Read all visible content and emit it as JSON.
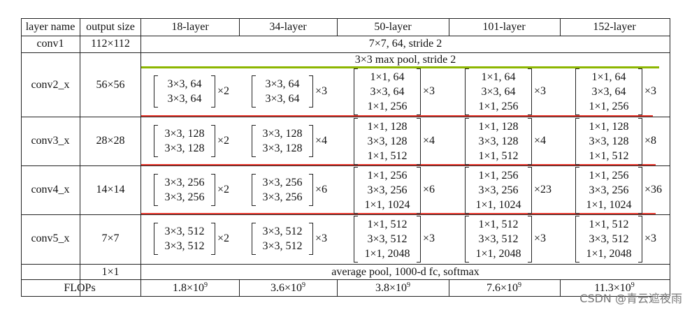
{
  "header": [
    "layer name",
    "output size",
    "18-layer",
    "34-layer",
    "50-layer",
    "101-layer",
    "152-layer"
  ],
  "rows": [
    {
      "name": "conv1",
      "size": "112×112",
      "span": "7×7, 64, stride 2"
    },
    {
      "name": "conv2_x",
      "size": "56×56",
      "span_top": "3×3 max pool, stride 2",
      "blocks": [
        {
          "lines": [
            "3×3, 64",
            "3×3, 64"
          ],
          "mult": "×2"
        },
        {
          "lines": [
            "3×3, 64",
            "3×3, 64"
          ],
          "mult": "×3"
        },
        {
          "lines": [
            "1×1, 64",
            "3×3, 64",
            "1×1, 256"
          ],
          "mult": "×3"
        },
        {
          "lines": [
            "1×1, 64",
            "3×3, 64",
            "1×1, 256"
          ],
          "mult": "×3"
        },
        {
          "lines": [
            "1×1, 64",
            "3×3, 64",
            "1×1, 256"
          ],
          "mult": "×3"
        }
      ]
    },
    {
      "name": "conv3_x",
      "size": "28×28",
      "blocks": [
        {
          "lines": [
            "3×3, 128",
            "3×3, 128"
          ],
          "mult": "×2"
        },
        {
          "lines": [
            "3×3, 128",
            "3×3, 128"
          ],
          "mult": "×4"
        },
        {
          "lines": [
            "1×1, 128",
            "3×3, 128",
            "1×1, 512"
          ],
          "mult": "×4"
        },
        {
          "lines": [
            "1×1, 128",
            "3×3, 128",
            "1×1, 512"
          ],
          "mult": "×4"
        },
        {
          "lines": [
            "1×1, 128",
            "3×3, 128",
            "1×1, 512"
          ],
          "mult": "×8"
        }
      ]
    },
    {
      "name": "conv4_x",
      "size": "14×14",
      "blocks": [
        {
          "lines": [
            "3×3, 256",
            "3×3, 256"
          ],
          "mult": "×2"
        },
        {
          "lines": [
            "3×3, 256",
            "3×3, 256"
          ],
          "mult": "×6"
        },
        {
          "lines": [
            "1×1, 256",
            "3×3, 256",
            "1×1, 1024"
          ],
          "mult": "×6"
        },
        {
          "lines": [
            "1×1, 256",
            "3×3, 256",
            "1×1, 1024"
          ],
          "mult": "×23"
        },
        {
          "lines": [
            "1×1, 256",
            "3×3, 256",
            "1×1, 1024"
          ],
          "mult": "×36"
        }
      ]
    },
    {
      "name": "conv5_x",
      "size": "7×7",
      "blocks": [
        {
          "lines": [
            "3×3, 512",
            "3×3, 512"
          ],
          "mult": "×2"
        },
        {
          "lines": [
            "3×3, 512",
            "3×3, 512"
          ],
          "mult": "×3"
        },
        {
          "lines": [
            "1×1, 512",
            "3×3, 512",
            "1×1, 2048"
          ],
          "mult": "×3"
        },
        {
          "lines": [
            "1×1, 512",
            "3×3, 512",
            "1×1, 2048"
          ],
          "mult": "×3"
        },
        {
          "lines": [
            "1×1, 512",
            "3×3, 512",
            "1×1, 2048"
          ],
          "mult": "×3"
        }
      ]
    },
    {
      "name": "",
      "size": "1×1",
      "span": "average pool, 1000-d fc, softmax"
    }
  ],
  "flops": {
    "label": "FLOPs",
    "values": [
      {
        "mantissa": "1.8×10",
        "exp": "9"
      },
      {
        "mantissa": "3.6×10",
        "exp": "9"
      },
      {
        "mantissa": "3.8×10",
        "exp": "9"
      },
      {
        "mantissa": "7.6×10",
        "exp": "9"
      },
      {
        "mantissa": "11.3×10",
        "exp": "9"
      }
    ]
  },
  "watermark": "CSDN @青云遮夜雨",
  "colors": {
    "green_rule": "#8db600",
    "red_rule": "#e8392f"
  }
}
